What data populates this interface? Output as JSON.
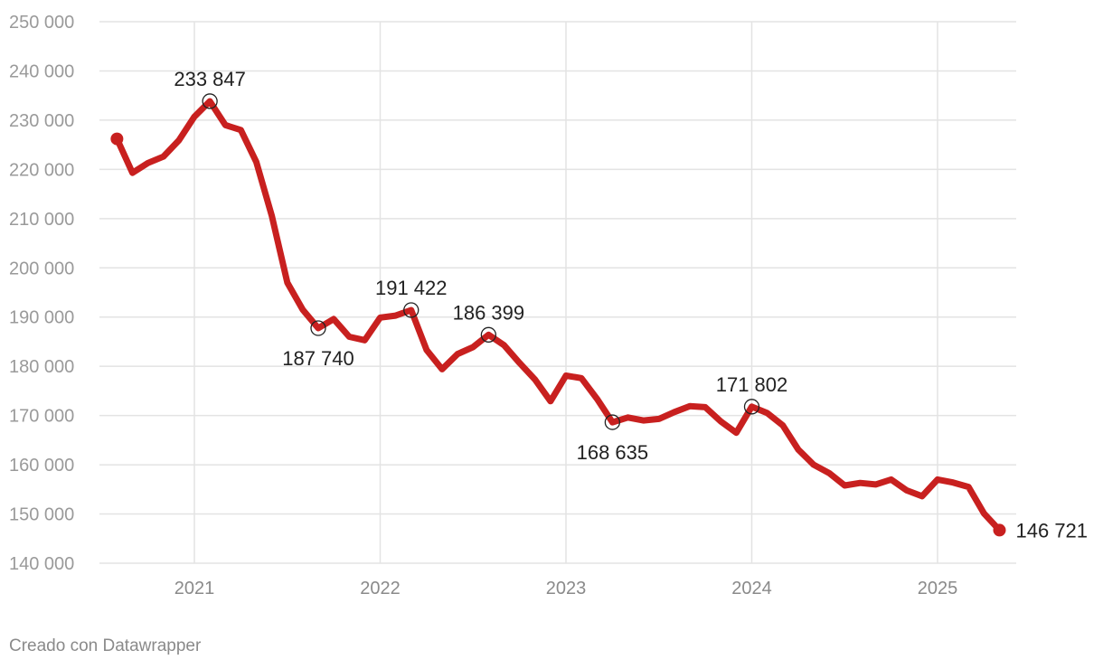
{
  "credit": "Creado con Datawrapper",
  "colors": {
    "line": "#c8201f",
    "grid": "#e3e3e3",
    "axis_text": "#9a9a9a",
    "label_text": "#222222"
  },
  "chart_data": {
    "type": "line",
    "title": "",
    "xlabel": "",
    "ylabel": "",
    "ylim": [
      140000,
      250000
    ],
    "xlim": [
      "2020-07",
      "2025-06"
    ],
    "y_ticks": [
      140000,
      150000,
      160000,
      170000,
      180000,
      190000,
      200000,
      210000,
      220000,
      230000,
      240000,
      250000
    ],
    "y_tick_labels": [
      "140 000",
      "150 000",
      "160 000",
      "170 000",
      "180 000",
      "190 000",
      "200 000",
      "210 000",
      "220 000",
      "230 000",
      "240 000",
      "250 000"
    ],
    "x_ticks": [
      "2021",
      "2022",
      "2023",
      "2024",
      "2025"
    ],
    "grid": true,
    "series": [
      {
        "color": "#c8201f",
        "points": [
          [
            "2020-08",
            226200
          ],
          [
            "2020-09",
            219300
          ],
          [
            "2020-10",
            221300
          ],
          [
            "2020-11",
            222600
          ],
          [
            "2020-12",
            225900
          ],
          [
            "2021-01",
            230700
          ],
          [
            "2021-02",
            233847
          ],
          [
            "2021-03",
            229000
          ],
          [
            "2021-04",
            228000
          ],
          [
            "2021-05",
            221500
          ],
          [
            "2021-06",
            210600
          ],
          [
            "2021-07",
            197000
          ],
          [
            "2021-08",
            191500
          ],
          [
            "2021-09",
            187740
          ],
          [
            "2021-10",
            189600
          ],
          [
            "2021-11",
            186000
          ],
          [
            "2021-12",
            185300
          ],
          [
            "2022-01",
            189900
          ],
          [
            "2022-02",
            190300
          ],
          [
            "2022-03",
            191422
          ],
          [
            "2022-04",
            183300
          ],
          [
            "2022-05",
            179400
          ],
          [
            "2022-06",
            182500
          ],
          [
            "2022-07",
            183900
          ],
          [
            "2022-08",
            186399
          ],
          [
            "2022-09",
            184300
          ],
          [
            "2022-10",
            180700
          ],
          [
            "2022-11",
            177300
          ],
          [
            "2022-12",
            172900
          ],
          [
            "2023-01",
            178100
          ],
          [
            "2023-02",
            177600
          ],
          [
            "2023-03",
            173400
          ],
          [
            "2023-04",
            168635
          ],
          [
            "2023-05",
            169600
          ],
          [
            "2023-06",
            169000
          ],
          [
            "2023-07",
            169300
          ],
          [
            "2023-08",
            170700
          ],
          [
            "2023-09",
            171900
          ],
          [
            "2023-10",
            171700
          ],
          [
            "2023-11",
            168800
          ],
          [
            "2023-12",
            166500
          ],
          [
            "2024-01",
            171802
          ],
          [
            "2024-02",
            170500
          ],
          [
            "2024-03",
            168000
          ],
          [
            "2024-04",
            163100
          ],
          [
            "2024-05",
            160000
          ],
          [
            "2024-06",
            158300
          ],
          [
            "2024-07",
            155800
          ],
          [
            "2024-08",
            156300
          ],
          [
            "2024-09",
            156000
          ],
          [
            "2024-10",
            157000
          ],
          [
            "2024-11",
            154800
          ],
          [
            "2024-12",
            153600
          ],
          [
            "2025-01",
            157000
          ],
          [
            "2025-02",
            156400
          ],
          [
            "2025-03",
            155500
          ],
          [
            "2025-04",
            150100
          ],
          [
            "2025-05",
            146721
          ]
        ]
      }
    ],
    "annotations": [
      {
        "x": "2021-02",
        "y": 233847,
        "label": "233 847",
        "pos": "above",
        "marker": "ring"
      },
      {
        "x": "2021-09",
        "y": 187740,
        "label": "187 740",
        "pos": "below",
        "marker": "ring"
      },
      {
        "x": "2022-03",
        "y": 191422,
        "label": "191 422",
        "pos": "above",
        "marker": "ring"
      },
      {
        "x": "2022-08",
        "y": 186399,
        "label": "186 399",
        "pos": "above",
        "marker": "ring"
      },
      {
        "x": "2023-04",
        "y": 168635,
        "label": "168 635",
        "pos": "below",
        "marker": "ring"
      },
      {
        "x": "2024-01",
        "y": 171802,
        "label": "171 802",
        "pos": "above",
        "marker": "ring"
      },
      {
        "x": "2025-05",
        "y": 146721,
        "label": "146 721",
        "pos": "right",
        "marker": "dot"
      }
    ],
    "start_marker": {
      "x": "2020-08",
      "y": 226200,
      "marker": "dot"
    }
  }
}
